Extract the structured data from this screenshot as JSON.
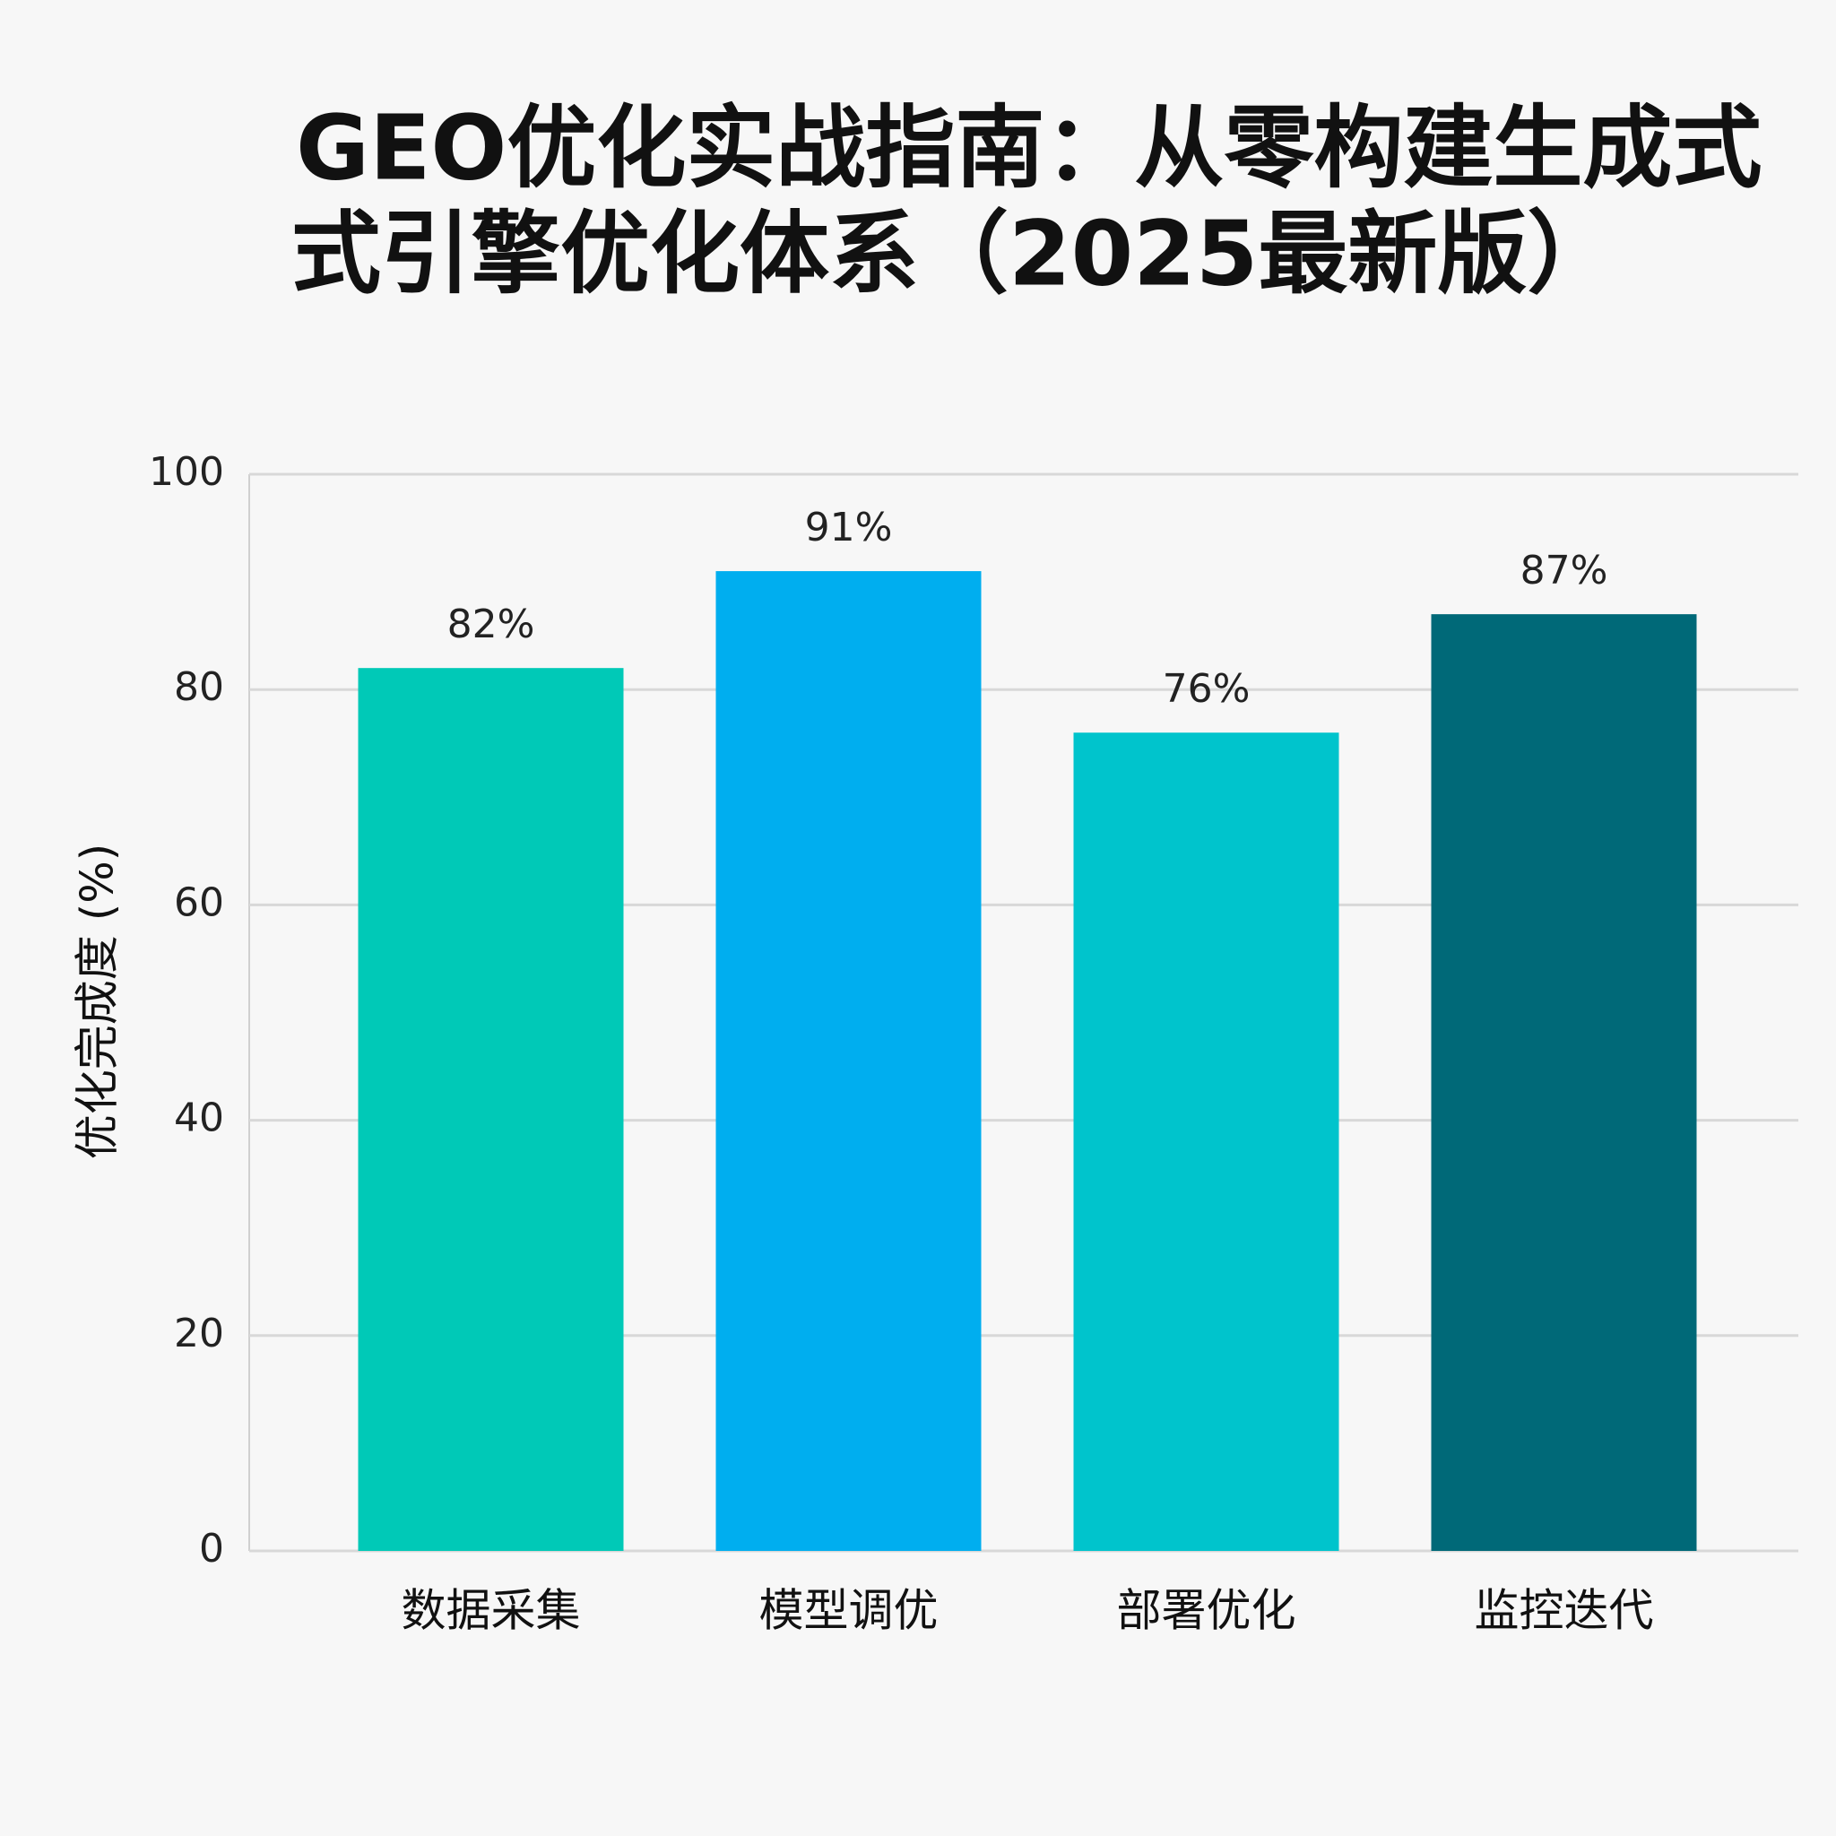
{
  "chart_data": {
    "type": "bar",
    "title": [
      "GEO优化实战指南：从零构建生成式",
      "式引擎优化体系（2025最新版）"
    ],
    "y_label": "优化完成度 (%)",
    "categories": [
      "数据采集",
      "模型调优",
      "部署优化",
      "监控迭代"
    ],
    "values": [
      82,
      91,
      76,
      87
    ],
    "value_labels": [
      "82%",
      "91%",
      "76%",
      "87%"
    ],
    "colors": [
      "#00c9b7",
      "#00aeef",
      "#00c4cc",
      "#006978"
    ],
    "ylim": [
      0,
      100
    ],
    "yticks": [
      0,
      20,
      40,
      60,
      80,
      100
    ],
    "grid": true
  }
}
